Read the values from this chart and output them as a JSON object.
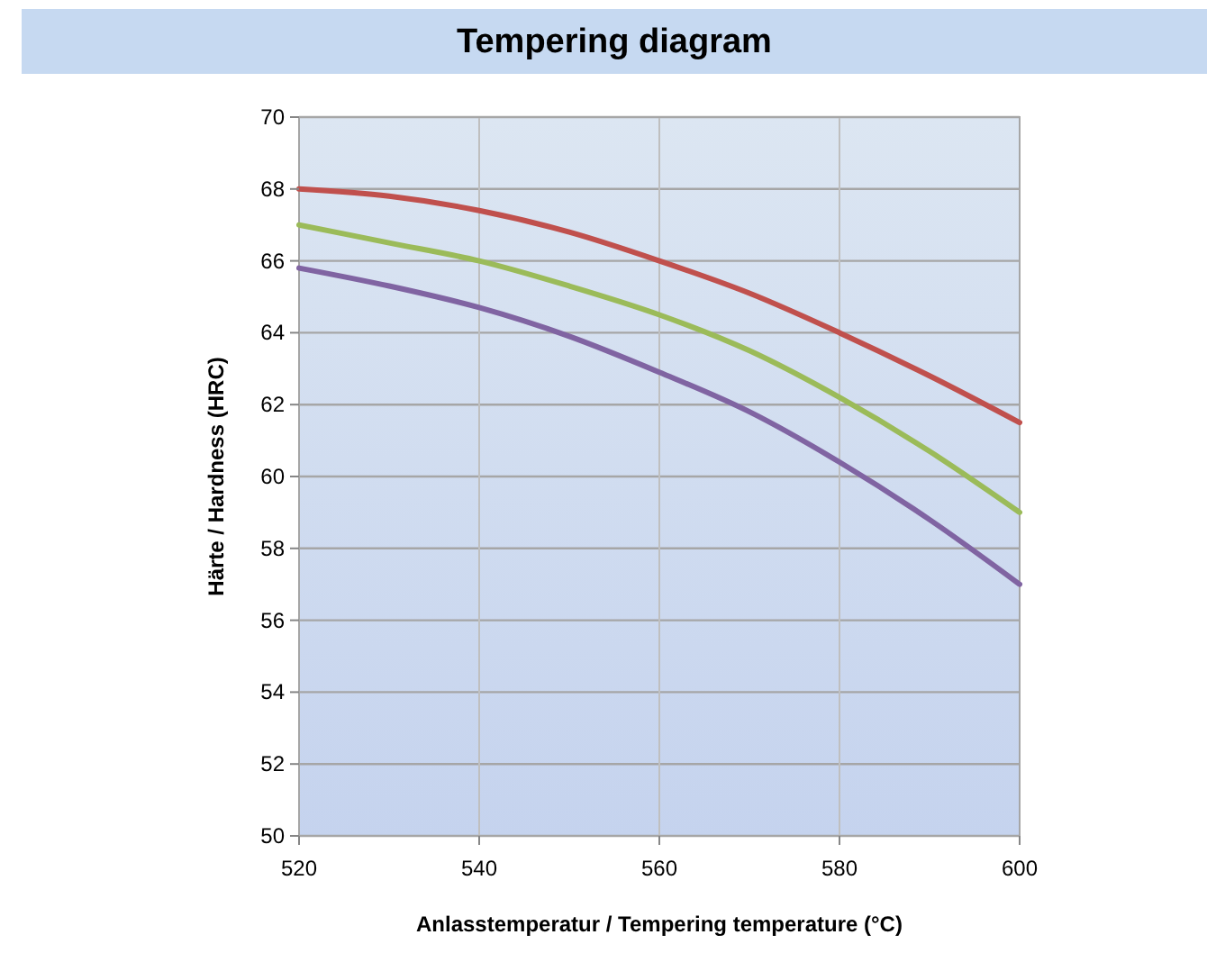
{
  "chart_data": {
    "type": "line",
    "title": "Tempering diagram",
    "xlabel": "Anlasstemperatur / Tempering temperature (°C)",
    "ylabel": "Härte / Hardness (HRC)",
    "x": [
      520,
      530,
      540,
      550,
      560,
      570,
      580,
      590,
      600
    ],
    "series": [
      {
        "color": "#c0504d",
        "values": [
          68,
          67.8,
          67.4,
          66.8,
          66,
          65.1,
          64,
          62.8,
          61.5
        ]
      },
      {
        "color": "#9bbb59",
        "values": [
          67,
          66.5,
          66,
          65.3,
          64.5,
          63.5,
          62.2,
          60.7,
          59
        ]
      },
      {
        "color": "#8064a2",
        "values": [
          65.8,
          65.3,
          64.7,
          63.9,
          62.9,
          61.8,
          60.4,
          58.8,
          57
        ]
      }
    ],
    "xlim": [
      520,
      600
    ],
    "xticks": [
      520,
      540,
      560,
      580,
      600
    ],
    "ylim": [
      50,
      70
    ],
    "yticks": [
      50,
      52,
      54,
      56,
      58,
      60,
      62,
      64,
      66,
      68,
      70
    ],
    "grid": true,
    "marker": "none",
    "line_style": "solid"
  }
}
